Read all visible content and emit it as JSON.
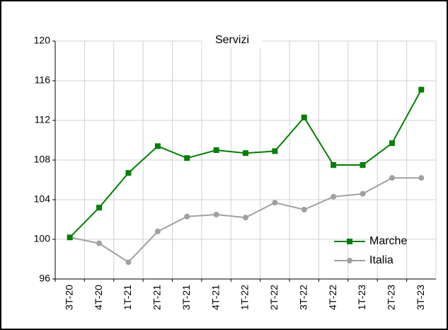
{
  "chart_data": {
    "type": "line",
    "title": "Servizi",
    "categories": [
      "3T-20",
      "4T-20",
      "1T-21",
      "2T-21",
      "3T-21",
      "4T-21",
      "1T-22",
      "2T-22",
      "3T-22",
      "4T-22",
      "1T-23",
      "2T-23",
      "3T-23"
    ],
    "series": [
      {
        "name": "Marche",
        "color": "#008000",
        "marker": "square",
        "values": [
          100.2,
          103.2,
          106.7,
          109.4,
          108.2,
          109.0,
          108.7,
          108.9,
          112.3,
          107.5,
          107.5,
          109.7,
          115.1
        ]
      },
      {
        "name": "Italia",
        "color": "#a0a0a0",
        "marker": "circle",
        "values": [
          100.2,
          99.6,
          97.7,
          100.8,
          102.3,
          102.5,
          102.2,
          103.7,
          103.0,
          104.3,
          104.6,
          106.2,
          106.2
        ]
      }
    ],
    "ylim": [
      96,
      120
    ],
    "yticks": [
      96,
      100,
      104,
      108,
      112,
      116,
      120
    ],
    "grid": true,
    "legend": "lower right"
  }
}
